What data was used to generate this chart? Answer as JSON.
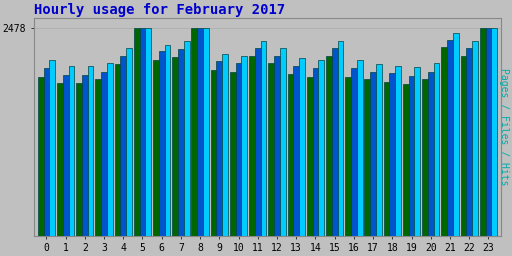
{
  "title": "Hourly usage for February 2017",
  "title_color": "#0000cc",
  "title_fontsize": 10,
  "ylabel": "Pages / Files / Hits",
  "ylabel_color": "#00aaaa",
  "ylabel_fontsize": 7,
  "background_color": "#c0c0c0",
  "plot_bg_color": "#c0c0c0",
  "ytick_label": "2478",
  "ylim_max": 2600,
  "hours": [
    0,
    1,
    2,
    3,
    4,
    5,
    6,
    7,
    8,
    9,
    10,
    11,
    12,
    13,
    14,
    15,
    16,
    17,
    18,
    19,
    20,
    21,
    22,
    23
  ],
  "pages": [
    1900,
    1820,
    1820,
    1870,
    2050,
    2478,
    2100,
    2130,
    2478,
    1980,
    1960,
    2150,
    2060,
    1930,
    1900,
    2150,
    1900,
    1870,
    1840,
    1810,
    1870,
    2250,
    2150,
    2478
  ],
  "files": [
    2000,
    1920,
    1920,
    1960,
    2150,
    2478,
    2200,
    2230,
    2478,
    2080,
    2060,
    2240,
    2150,
    2030,
    2000,
    2240,
    2000,
    1960,
    1940,
    1910,
    1960,
    2340,
    2240,
    2478
  ],
  "hits": [
    2100,
    2020,
    2020,
    2060,
    2240,
    2478,
    2280,
    2320,
    2478,
    2170,
    2150,
    2330,
    2240,
    2120,
    2100,
    2330,
    2100,
    2050,
    2030,
    2010,
    2060,
    2420,
    2330,
    2478
  ],
  "pages_color": "#006600",
  "files_color": "#0055cc",
  "hits_color": "#00ccff",
  "bar_width": 0.3,
  "edge_color": "#004444"
}
